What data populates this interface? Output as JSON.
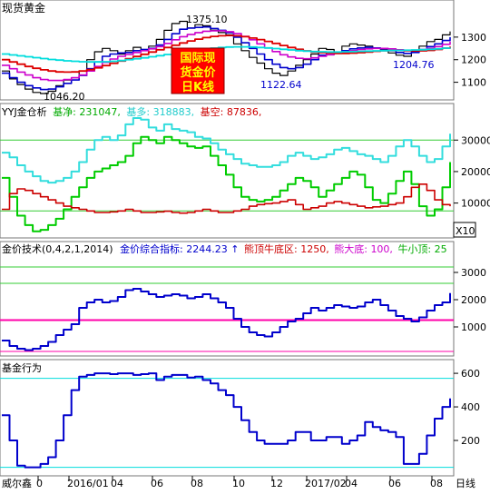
{
  "panels": {
    "p1": {
      "title": "现货黄金"
    },
    "p2": {
      "label_name": "YYJ金仓析",
      "jn_label": "基净:",
      "jn_value": "231047,",
      "jd_label": "基多:",
      "jd_value": "318883,",
      "jk_label": "基空:",
      "jk_value": "87836,",
      "axis_x10": "X10"
    },
    "p3": {
      "label": "金价技术(0,4,2,1,2014)",
      "zhibiao_label": "金价综合指标:",
      "zhibiao_value": "2244.23",
      "arrow": "↑",
      "bull_label": "熊顶牛底区:",
      "bull_value": "1250,",
      "bear_label": "熊大底:",
      "bear_value": "100,",
      "ox_label": "牛小顶:",
      "ox_value": "25"
    },
    "p4": {
      "label": "基金行为"
    }
  },
  "badge": {
    "line1": "国际现",
    "line2": "货金价",
    "line3": "日K线"
  },
  "annotations": {
    "high": "1375.10",
    "low1": "1046.20",
    "low2": "1122.64",
    "last": "1204.76"
  },
  "xaxis": {
    "start_label": "威尔鑫",
    "ticks": [
      "0",
      "2016/01",
      "04",
      "06",
      "08",
      "10",
      "12",
      "2017/02",
      "04",
      "06",
      "08"
    ],
    "period": "日线"
  },
  "colors": {
    "price": "#000000",
    "ma_blue": "#0000cc",
    "ma_magenta": "#cc00cc",
    "ma_red": "#dd0000",
    "ma_cyan": "#00dddd",
    "net_green": "#00cc00",
    "long_cyan": "#33dddd",
    "short_red": "#cc0000",
    "tech_blue": "#0000cc",
    "hline_magenta": "#ff00aa",
    "hline_green": "#33cc33",
    "fund_blue": "#0000cc",
    "grid": "#bbbbbb",
    "badge_bg": "#ff0000",
    "badge_text": "#ffff00"
  },
  "chart_data": [
    {
      "type": "line",
      "title": "现货黄金",
      "xlabel": "",
      "ylabel": "",
      "ylim": [
        1030,
        1400
      ],
      "yticks": [
        1100,
        1200,
        1300
      ],
      "series": [
        {
          "role": "price",
          "values": [
            1150,
            1115,
            1090,
            1070,
            1055,
            1050,
            1060,
            1085,
            1110,
            1120,
            1150,
            1200,
            1235,
            1250,
            1240,
            1225,
            1240,
            1255,
            1245,
            1260,
            1290,
            1330,
            1360,
            1370,
            1340,
            1355,
            1350,
            1330,
            1320,
            1310,
            1270,
            1240,
            1210,
            1185,
            1160,
            1140,
            1130,
            1150,
            1175,
            1200,
            1225,
            1250,
            1245,
            1230,
            1260,
            1270,
            1265,
            1260,
            1250,
            1245,
            1230,
            1220,
            1215,
            1235,
            1260,
            1280,
            1290,
            1310,
            1325
          ]
        },
        {
          "values": [
            1140,
            1120,
            1100,
            1085,
            1075,
            1068,
            1070,
            1080,
            1095,
            1110,
            1130,
            1160,
            1190,
            1215,
            1225,
            1230,
            1232,
            1240,
            1245,
            1250,
            1265,
            1290,
            1315,
            1335,
            1340,
            1343,
            1345,
            1338,
            1330,
            1320,
            1300,
            1275,
            1250,
            1225,
            1200,
            1180,
            1165,
            1160,
            1165,
            1180,
            1200,
            1220,
            1230,
            1232,
            1240,
            1248,
            1252,
            1255,
            1252,
            1248,
            1240,
            1232,
            1228,
            1232,
            1245,
            1258,
            1270,
            1285,
            1300
          ]
        },
        {
          "values": [
            1175,
            1160,
            1145,
            1132,
            1120,
            1112,
            1108,
            1108,
            1112,
            1120,
            1132,
            1150,
            1170,
            1188,
            1203,
            1215,
            1223,
            1232,
            1240,
            1248,
            1258,
            1272,
            1288,
            1302,
            1312,
            1320,
            1326,
            1328,
            1328,
            1324,
            1316,
            1303,
            1288,
            1270,
            1252,
            1236,
            1222,
            1212,
            1206,
            1204,
            1208,
            1215,
            1222,
            1228,
            1234,
            1240,
            1245,
            1248,
            1250,
            1250,
            1248,
            1244,
            1240,
            1240,
            1244,
            1250,
            1258,
            1268,
            1280
          ]
        },
        {
          "values": [
            1200,
            1190,
            1180,
            1170,
            1162,
            1155,
            1150,
            1146,
            1145,
            1146,
            1150,
            1156,
            1164,
            1174,
            1184,
            1194,
            1204,
            1214,
            1224,
            1234,
            1244,
            1254,
            1264,
            1274,
            1283,
            1291,
            1298,
            1303,
            1306,
            1307,
            1306,
            1302,
            1296,
            1289,
            1281,
            1272,
            1263,
            1254,
            1246,
            1239,
            1234,
            1231,
            1229,
            1228,
            1228,
            1229,
            1231,
            1234,
            1237,
            1240,
            1241,
            1241,
            1240,
            1239,
            1239,
            1241,
            1245,
            1251,
            1258
          ]
        },
        {
          "values": [
            1225,
            1221,
            1217,
            1213,
            1209,
            1205,
            1201,
            1198,
            1195,
            1193,
            1191,
            1190,
            1190,
            1191,
            1193,
            1196,
            1200,
            1204,
            1208,
            1213,
            1218,
            1223,
            1228,
            1233,
            1238,
            1243,
            1247,
            1251,
            1254,
            1256,
            1257,
            1257,
            1256,
            1254,
            1252,
            1249,
            1246,
            1243,
            1240,
            1238,
            1236,
            1235,
            1234,
            1234,
            1235,
            1236,
            1237,
            1238,
            1239,
            1240,
            1241,
            1241,
            1242,
            1243,
            1244,
            1246,
            1248,
            1251,
            1254
          ]
        }
      ]
    },
    {
      "type": "line",
      "title": "YYJ金仓析",
      "xlabel": "",
      "ylabel": "",
      "ylim": [
        -500,
        37000
      ],
      "yticks": [
        10000,
        20000,
        30000
      ],
      "series": [
        {
          "name": "基净",
          "values": [
            18000,
            12000,
            6000,
            3000,
            1000,
            1500,
            3000,
            5000,
            8000,
            12000,
            15000,
            18000,
            20000,
            21000,
            22000,
            23000,
            25000,
            29000,
            31000,
            30000,
            29000,
            31000,
            30000,
            29000,
            28000,
            27500,
            28000,
            25000,
            22000,
            19000,
            15000,
            12000,
            11000,
            10500,
            11000,
            12000,
            14000,
            16000,
            18000,
            17000,
            15000,
            12000,
            14000,
            16000,
            18000,
            20000,
            19000,
            15000,
            11000,
            10000,
            13000,
            17000,
            20000,
            16000,
            9000,
            6000,
            8000,
            15000,
            23000
          ]
        },
        {
          "name": "基多",
          "values": [
            26000,
            24500,
            22000,
            20000,
            18500,
            17000,
            16500,
            17000,
            18000,
            20000,
            23000,
            27000,
            30000,
            31000,
            30000,
            31500,
            35000,
            37000,
            36500,
            34000,
            33000,
            35000,
            33500,
            33000,
            32500,
            31000,
            30500,
            29000,
            27000,
            25500,
            24000,
            22500,
            22000,
            21500,
            21500,
            22000,
            23000,
            25000,
            26000,
            25000,
            24000,
            24500,
            25500,
            27000,
            27500,
            26500,
            25500,
            25000,
            24000,
            23000,
            25000,
            28000,
            30000,
            28000,
            25000,
            23000,
            24000,
            28000,
            32000
          ]
        },
        {
          "name": "基空",
          "values": [
            8000,
            13000,
            14500,
            14000,
            13000,
            12000,
            11000,
            10000,
            9000,
            8500,
            8000,
            7500,
            7000,
            7000,
            7200,
            7500,
            8000,
            7500,
            7000,
            7000,
            7200,
            7400,
            7000,
            6800,
            7000,
            7500,
            8000,
            7500,
            7000,
            7000,
            7500,
            8000,
            9000,
            9500,
            9800,
            10000,
            10500,
            11000,
            9500,
            8000,
            8500,
            9000,
            10000,
            10500,
            10000,
            9500,
            9000,
            8500,
            8800,
            9000,
            9500,
            10000,
            12000,
            15000,
            16000,
            14000,
            11000,
            9500,
            9000
          ]
        }
      ]
    },
    {
      "type": "line",
      "title": "金价技术(0,4,2,1,2014)",
      "xlabel": "",
      "ylabel": "",
      "ylim": [
        0,
        3600
      ],
      "yticks": [
        1000,
        2000,
        3000
      ],
      "hlines": [
        100,
        1250,
        2600,
        3200
      ],
      "series": [
        {
          "name": "金价综合指标",
          "values": [
            500,
            300,
            200,
            150,
            200,
            300,
            450,
            700,
            900,
            1100,
            1700,
            1900,
            2000,
            1900,
            1950,
            2100,
            2350,
            2400,
            2300,
            2200,
            2100,
            2150,
            2200,
            2150,
            2050,
            2100,
            2200,
            2050,
            1900,
            1700,
            1300,
            1000,
            800,
            700,
            650,
            800,
            1000,
            1200,
            1300,
            1500,
            1700,
            1600,
            1700,
            1800,
            1750,
            1700,
            1750,
            1900,
            2000,
            1800,
            1600,
            1400,
            1300,
            1200,
            1350,
            1600,
            1800,
            1900,
            2244
          ]
        }
      ]
    },
    {
      "type": "line",
      "title": "基金行为",
      "xlabel": "",
      "ylabel": "",
      "ylim": [
        0,
        660
      ],
      "yticks": [
        200,
        400,
        600
      ],
      "hlines": [
        570,
        40
      ],
      "series": [
        {
          "name": "基金行为",
          "values": [
            350,
            200,
            50,
            40,
            40,
            60,
            100,
            200,
            350,
            500,
            580,
            590,
            600,
            600,
            595,
            600,
            600,
            590,
            595,
            600,
            560,
            580,
            590,
            590,
            575,
            580,
            560,
            540,
            500,
            470,
            400,
            320,
            250,
            200,
            180,
            180,
            180,
            200,
            250,
            250,
            200,
            200,
            220,
            220,
            180,
            200,
            230,
            310,
            280,
            260,
            250,
            220,
            60,
            60,
            120,
            230,
            330,
            400,
            450
          ]
        }
      ]
    }
  ]
}
